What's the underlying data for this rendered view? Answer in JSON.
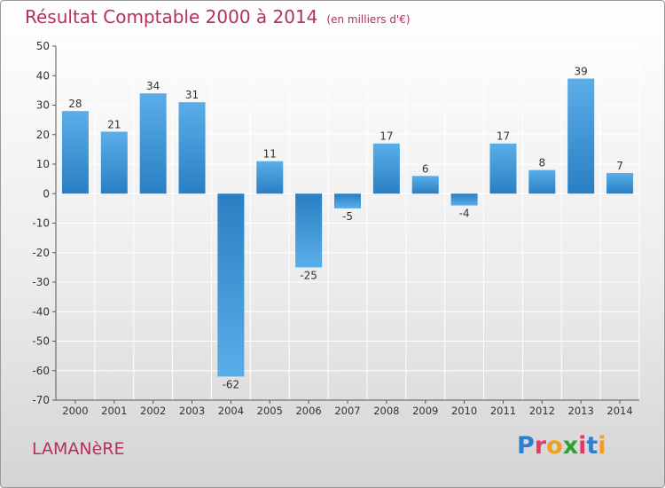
{
  "header": {
    "title": "Résultat Comptable 2000 à 2014",
    "unit": "(en milliers d'€)"
  },
  "footer": {
    "commune": "LAMANèRE",
    "logo": {
      "text": "Proxiti",
      "letter_colors": [
        "#2f7fd0",
        "#e23a6a",
        "#f0a020",
        "#30a030",
        "#e23a6a",
        "#2f7fd0",
        "#f0a020"
      ]
    }
  },
  "colors": {
    "bar_light": "#5aaee8",
    "bar_dark": "#2a7fc4",
    "text": "#333333",
    "grid": "#ffffff"
  },
  "chart_data": {
    "type": "bar",
    "categories": [
      "2000",
      "2001",
      "2002",
      "2003",
      "2004",
      "2005",
      "2006",
      "2007",
      "2008",
      "2009",
      "2010",
      "2011",
      "2012",
      "2013",
      "2014"
    ],
    "values": [
      28,
      21,
      34,
      31,
      -62,
      11,
      -25,
      -5,
      17,
      6,
      -4,
      17,
      8,
      39,
      7
    ],
    "labels": [
      "28",
      "21",
      "34",
      "31",
      "-62",
      "11",
      "-25",
      "-5",
      "17",
      "6",
      "-4",
      "17",
      "8",
      "39",
      "7"
    ],
    "yticks": [
      "50",
      "40",
      "30",
      "20",
      "10",
      "0",
      "-10",
      "-20",
      "-30",
      "-40",
      "-50",
      "-60",
      "-70"
    ],
    "ylim": [
      -70,
      50
    ],
    "grid": true
  }
}
